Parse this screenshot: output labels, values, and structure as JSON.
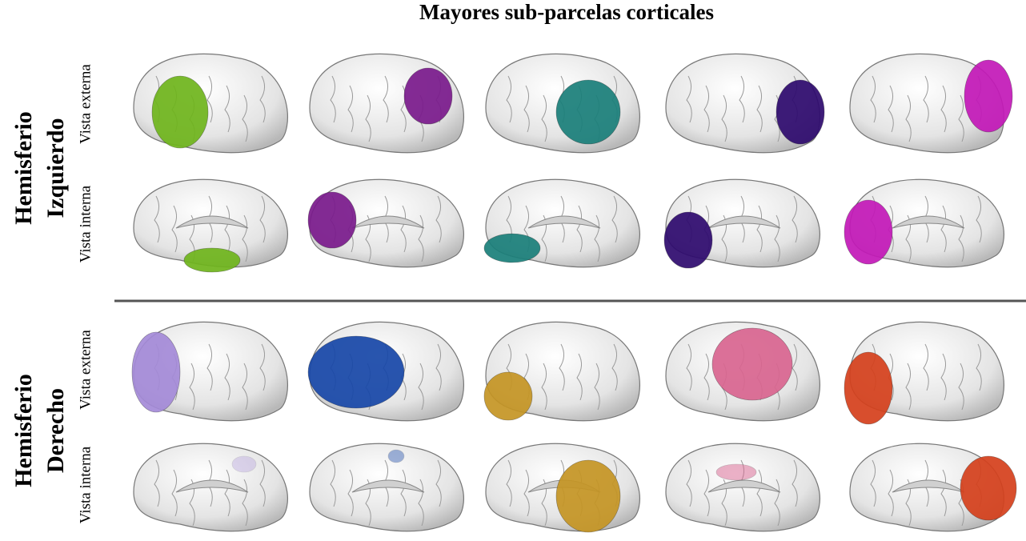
{
  "title": "Mayores sub-parcelas corticales",
  "hemispheres": [
    {
      "label_lines": [
        "Hemisferio",
        "Izquierdo"
      ],
      "views": [
        "Vista externa",
        "Vista interna"
      ]
    },
    {
      "label_lines": [
        "Hemisferio",
        "Derecho"
      ],
      "views": [
        "Vista externa",
        "Vista interna"
      ]
    }
  ]
}
